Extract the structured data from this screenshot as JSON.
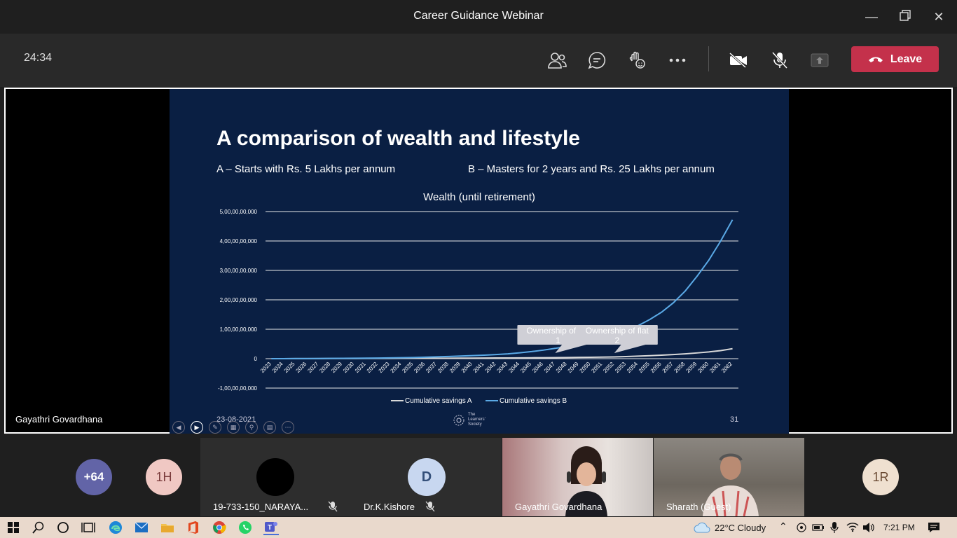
{
  "window": {
    "title": "Career Guidance Webinar"
  },
  "meeting": {
    "timer": "24:34",
    "leave_label": "Leave",
    "icons": [
      "people-icon",
      "chat-icon",
      "raise-hand-icon",
      "more-icon",
      "camera-off-icon",
      "mic-off-icon",
      "share-icon",
      "phone-hangup-icon"
    ]
  },
  "slide": {
    "title": "A comparison of wealth and lifestyle",
    "subtitle_a": "A – Starts with Rs. 5 Lakhs per annum",
    "subtitle_b": "B – Masters for 2 years and Rs. 25 Lakhs per annum",
    "date": "23-08-2021",
    "page_number": "31",
    "logo_text": "The Learners' Society",
    "presenter": "Gayathri Govardhana"
  },
  "chart_data": {
    "type": "line",
    "title": "Wealth (until retirement)",
    "y_ticks": [
      "-1,00,00,00,000",
      "0",
      "1,00,00,00,000",
      "2,00,00,00,000",
      "3,00,00,00,000",
      "4,00,00,00,000",
      "5,00,00,00,000"
    ],
    "ylim": [
      -1000000000,
      5000000000
    ],
    "x": [
      "2023",
      "2024",
      "2025",
      "2026",
      "2027",
      "2028",
      "2029",
      "2030",
      "2031",
      "2032",
      "2033",
      "2034",
      "2035",
      "2036",
      "2037",
      "2038",
      "2039",
      "2040",
      "2041",
      "2042",
      "2043",
      "2044",
      "2045",
      "2046",
      "2047",
      "2048",
      "2049",
      "2050",
      "2051",
      "2052",
      "2053",
      "2054",
      "2055",
      "2056",
      "2057",
      "2058",
      "2059",
      "2060",
      "2061",
      "2062"
    ],
    "series": [
      {
        "name": "Cumulative savings A",
        "color": "#d9d9d9",
        "values": [
          0,
          1000000,
          2000000,
          3000000,
          4000000,
          5000000,
          6000000,
          7000000,
          8000000,
          9000000,
          10000000,
          11000000,
          12000000,
          13000000,
          14000000,
          15000000,
          17000000,
          19000000,
          21000000,
          23000000,
          25000000,
          28000000,
          31000000,
          34000000,
          37000000,
          40000000,
          44000000,
          48000000,
          53000000,
          60000000,
          70000000,
          85000000,
          100000000,
          120000000,
          140000000,
          165000000,
          195000000,
          230000000,
          275000000,
          340000000
        ]
      },
      {
        "name": "Cumulative savings B",
        "color": "#5aa9e6",
        "values": [
          0,
          0,
          2000000,
          4000000,
          6000000,
          8000000,
          11000000,
          14000000,
          17000000,
          21000000,
          26000000,
          32000000,
          40000000,
          50000000,
          62000000,
          75000000,
          90000000,
          105000000,
          120000000,
          140000000,
          165000000,
          200000000,
          240000000,
          290000000,
          350000000,
          420000000,
          500000000,
          580000000,
          680000000,
          800000000,
          950000000,
          1120000000,
          1330000000,
          1580000000,
          1900000000,
          2300000000,
          2800000000,
          3350000000,
          4000000000,
          4720000000
        ]
      }
    ],
    "annotations": [
      {
        "text": "Ownership of flat 1",
        "x": "2047"
      },
      {
        "text": "Ownership of flat 2",
        "x": "2052"
      }
    ],
    "legend_position": "bottom",
    "grid": true
  },
  "participants": {
    "overflow_count": "+64",
    "initials": [
      {
        "text": "1H",
        "bg": "#f0c8c3",
        "fg": "#7a3b3b"
      },
      {
        "text": "1R",
        "bg": "#efe0d0",
        "fg": "#6a4a33"
      }
    ],
    "tiles": [
      {
        "name": "19-733-150_NARAYA...",
        "muted": true,
        "avatar": ""
      },
      {
        "name": "Dr.K.Kishore",
        "muted": true,
        "avatar": "D"
      },
      {
        "name": "Gayathri Govardhana",
        "muted": false,
        "avatar": ""
      },
      {
        "name": "Sharath (Guest)",
        "muted": false,
        "avatar": ""
      }
    ]
  },
  "taskbar": {
    "weather": "22°C  Cloudy",
    "time": "7:21 PM"
  }
}
